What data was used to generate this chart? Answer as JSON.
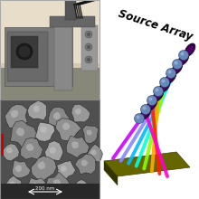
{
  "bg_color": "#ffffff",
  "title": "Source Array",
  "title_fontsize": 8.5,
  "scale_bar_text": "200 nm",
  "beam_colors": [
    "#aa00ff",
    "#6666ff",
    "#00ccff",
    "#00ffcc",
    "#aaff00",
    "#ff4400",
    "#ff00ff",
    "#ffcc00"
  ],
  "substrate_color": "#666600",
  "substrate_dark": "#444400",
  "n_beams": 8
}
